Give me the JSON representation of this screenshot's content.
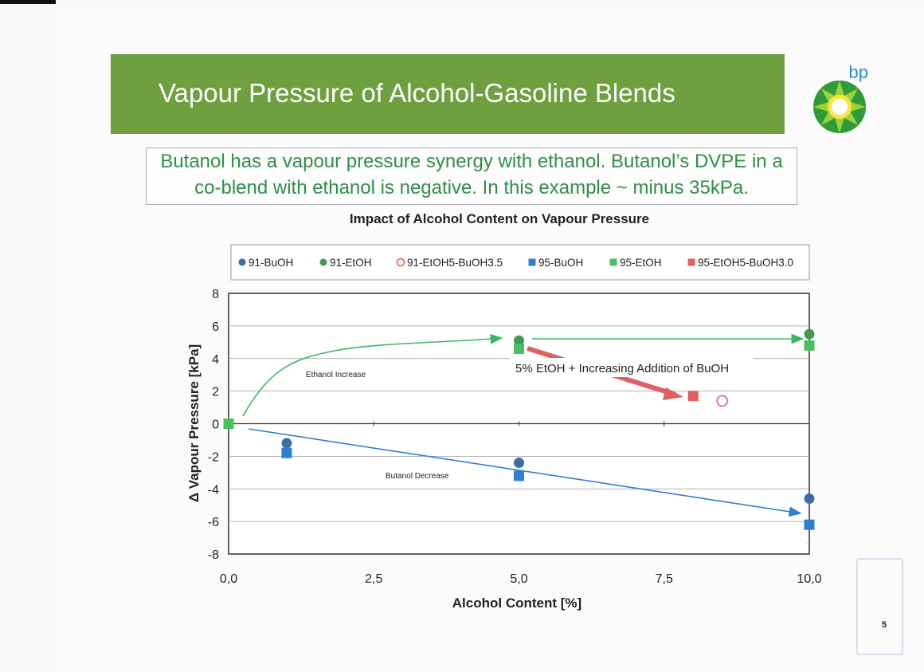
{
  "slide": {
    "title": "Vapour Pressure of Alcohol-Gasoline Blends",
    "callout_line1": "Butanol has a vapour pressure synergy with ethanol. Butanol’s DVPE in a",
    "callout_line2": "co-blend with ethanol is negative. In this example ~ minus 35kPa.",
    "logo_text": "bp",
    "page_number": "5"
  },
  "colors": {
    "title_bg": "#6fa040",
    "callout_text": "#2e8f48",
    "blue_dark": "#3a6ea5",
    "blue_square": "#2f80cf",
    "green_circle": "#3e9a56",
    "green_square": "#48c060",
    "red": "#e06060"
  },
  "chart_data": {
    "type": "scatter",
    "title": "Impact of Alcohol Content on Vapour Pressure",
    "xlabel": "Alcohol Content [%]",
    "ylabel": "Δ Vapour Pressure [kPa]",
    "xlim": [
      0,
      10
    ],
    "ylim": [
      -8,
      8
    ],
    "x_ticks": [
      "0,0",
      "2,5",
      "5,0",
      "7,5",
      "10,0"
    ],
    "x_tick_values": [
      0,
      2.5,
      5,
      7.5,
      10
    ],
    "y_ticks": [
      8,
      6,
      4,
      2,
      0,
      -2,
      -4,
      -6,
      -8
    ],
    "grid": "horizontal",
    "legend": "top",
    "series": [
      {
        "name": "91-BuOH",
        "marker": "circle",
        "color": "#3a6ea5",
        "points": [
          [
            0,
            0
          ],
          [
            1,
            -1.2
          ],
          [
            5,
            -2.4
          ],
          [
            10,
            -4.6
          ]
        ]
      },
      {
        "name": "91-EtOH",
        "marker": "circle",
        "color": "#3e9a56",
        "points": [
          [
            5,
            5.1
          ],
          [
            10,
            5.5
          ]
        ]
      },
      {
        "name": "91-EtOH5-BuOH3.5",
        "marker": "open-circle",
        "color": "#e06060",
        "points": [
          [
            8.5,
            1.4
          ]
        ]
      },
      {
        "name": "95-BuOH",
        "marker": "square",
        "color": "#2f80cf",
        "points": [
          [
            0,
            0
          ],
          [
            1,
            -1.8
          ],
          [
            5,
            -3.2
          ],
          [
            10,
            -6.2
          ]
        ]
      },
      {
        "name": "95-EtOH",
        "marker": "square",
        "color": "#48c060",
        "points": [
          [
            0,
            0
          ],
          [
            5,
            4.6
          ],
          [
            10,
            4.8
          ]
        ]
      },
      {
        "name": "95-EtOH5-BuOH3.0",
        "marker": "square",
        "color": "#e06060",
        "points": [
          [
            8,
            1.7
          ]
        ]
      }
    ],
    "annotations": [
      {
        "text": "Ethanol  Increase"
      },
      {
        "text": "Butanol  Decrease"
      },
      {
        "text": "5% EtOH + Increasing Addition of BuOH"
      }
    ]
  }
}
